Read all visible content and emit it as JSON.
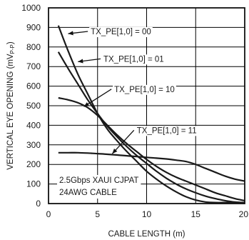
{
  "chart_data": {
    "type": "line",
    "title": "",
    "xlabel": "CABLE LENGTH (m)",
    "ylabel_main": "VERTICAL EYE OPENING (mV",
    "ylabel_sub": "P-P",
    "ylabel_close": ")",
    "xlim": [
      0,
      20
    ],
    "ylim": [
      0,
      1000
    ],
    "x_ticks": [
      "0",
      "5",
      "10",
      "15",
      "20"
    ],
    "x_tick_values": [
      0,
      5,
      10,
      15,
      20
    ],
    "y_ticks": [
      "0",
      "100",
      "200",
      "300",
      "400",
      "500",
      "600",
      "700",
      "800",
      "900",
      "1000"
    ],
    "y_tick_values": [
      0,
      100,
      200,
      300,
      400,
      500,
      600,
      700,
      800,
      900,
      1000
    ],
    "grid": true,
    "series": [
      {
        "name": "TX_PE[1,0] = 00",
        "points": [
          [
            1,
            910
          ],
          [
            2,
            780
          ],
          [
            3,
            660
          ],
          [
            4,
            560
          ],
          [
            5,
            460
          ],
          [
            6,
            380
          ],
          [
            7,
            320
          ],
          [
            8,
            265
          ],
          [
            9,
            215
          ],
          [
            10,
            165
          ],
          [
            11,
            125
          ],
          [
            12,
            90
          ],
          [
            13,
            60
          ],
          [
            14,
            35
          ],
          [
            15,
            18
          ],
          [
            16,
            8
          ],
          [
            17,
            5
          ],
          [
            18,
            5
          ],
          [
            19,
            5
          ],
          [
            20,
            5
          ]
        ]
      },
      {
        "name": "TX_PE[1,0] = 01",
        "points": [
          [
            1,
            775
          ],
          [
            2,
            690
          ],
          [
            3,
            610
          ],
          [
            4,
            530
          ],
          [
            5,
            460
          ],
          [
            6,
            395
          ],
          [
            7,
            340
          ],
          [
            8,
            290
          ],
          [
            9,
            245
          ],
          [
            10,
            205
          ],
          [
            11,
            165
          ],
          [
            12,
            130
          ],
          [
            13,
            100
          ],
          [
            14,
            75
          ],
          [
            15,
            55
          ],
          [
            16,
            38
          ],
          [
            17,
            25
          ],
          [
            18,
            15
          ],
          [
            19,
            8
          ],
          [
            20,
            5
          ]
        ]
      },
      {
        "name": "TX_PE[1,0] = 10",
        "points": [
          [
            1,
            540
          ],
          [
            2,
            530
          ],
          [
            3,
            515
          ],
          [
            4,
            490
          ],
          [
            5,
            450
          ],
          [
            6,
            400
          ],
          [
            7,
            350
          ],
          [
            8,
            305
          ],
          [
            9,
            265
          ],
          [
            10,
            225
          ],
          [
            11,
            190
          ],
          [
            12,
            160
          ],
          [
            13,
            135
          ],
          [
            14,
            115
          ],
          [
            15,
            95
          ],
          [
            16,
            75
          ],
          [
            17,
            55
          ],
          [
            18,
            40
          ],
          [
            19,
            25
          ],
          [
            20,
            15
          ]
        ]
      },
      {
        "name": "TX_PE[1,0] = 11",
        "points": [
          [
            1,
            260
          ],
          [
            2,
            260
          ],
          [
            3,
            260
          ],
          [
            4,
            258
          ],
          [
            5,
            255
          ],
          [
            6,
            252
          ],
          [
            7,
            248
          ],
          [
            8,
            244
          ],
          [
            9,
            240
          ],
          [
            10,
            236
          ],
          [
            11,
            232
          ],
          [
            12,
            228
          ],
          [
            13,
            222
          ],
          [
            14,
            215
          ],
          [
            15,
            200
          ],
          [
            16,
            180
          ],
          [
            17,
            160
          ],
          [
            18,
            140
          ],
          [
            19,
            125
          ],
          [
            20,
            115
          ]
        ]
      }
    ],
    "annotations": [
      {
        "text": "TX_PE[1,0] = 00",
        "x": 4.3,
        "y": 865,
        "to": [
          2.0,
          868
        ]
      },
      {
        "text": "TX_PE[1,0] = 01",
        "x": 5.6,
        "y": 725,
        "to": [
          3.0,
          725
        ]
      },
      {
        "text": "TX_PE[1,0] = 10",
        "x": 6.7,
        "y": 570,
        "to": [
          3.6,
          495
        ]
      },
      {
        "text": "TX_PE[1,0] = 11",
        "x": 9.0,
        "y": 360,
        "to": [
          6.5,
          255
        ]
      }
    ],
    "note_lines": [
      "2.5Gbps XAUI CJPAT",
      "24AWG CABLE"
    ],
    "line_color": "#1a1a1a",
    "grid_color": "#000000"
  }
}
